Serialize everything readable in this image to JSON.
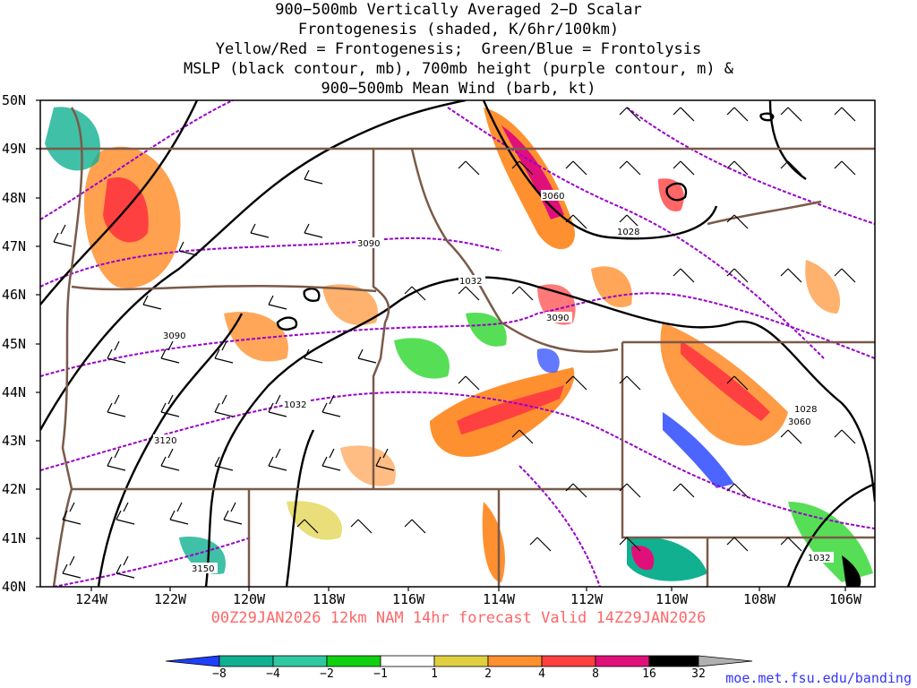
{
  "title": {
    "line1": "900−500mb Vertically Averaged 2−D Scalar",
    "line2": "Frontogenesis (shaded, K/6hr/100km)",
    "line3": "Yellow/Red = Frontogenesis;  Green/Blue = Frontolysis",
    "line4": "MSLP (black contour, mb), 700mb height (purple contour, m) &",
    "line5": "900−500mb Mean Wind (barb, kt)"
  },
  "lat_labels": [
    "50N",
    "49N",
    "48N",
    "47N",
    "46N",
    "45N",
    "44N",
    "43N",
    "42N",
    "41N",
    "40N"
  ],
  "lon_labels": [
    "124W",
    "122W",
    "120W",
    "118W",
    "116W",
    "114W",
    "112W",
    "110W",
    "108W",
    "106W"
  ],
  "contour_labels": {
    "mslp": [
      "1032",
      "1028",
      "1032",
      "1032",
      "1028",
      "1032"
    ],
    "height": [
      "3060",
      "3090",
      "3090",
      "3090",
      "3120",
      "3150",
      "3060"
    ]
  },
  "footer": "00Z29JAN2026 12km NAM 14hr forecast Valid 14Z29JAN2026",
  "colorbar": {
    "ticks": [
      "−8",
      "−4",
      "−2",
      "−1",
      "1",
      "2",
      "4",
      "8",
      "16",
      "32"
    ],
    "colors": [
      "#1f3fff",
      "#10b090",
      "#30c8a0",
      "#10d010",
      "#ffffff",
      "#e0d040",
      "#ff9030",
      "#ff4040",
      "#e0107a",
      "#000000",
      "#b0b0b0"
    ]
  },
  "credit": "moe.met.fsu.edu/banding"
}
